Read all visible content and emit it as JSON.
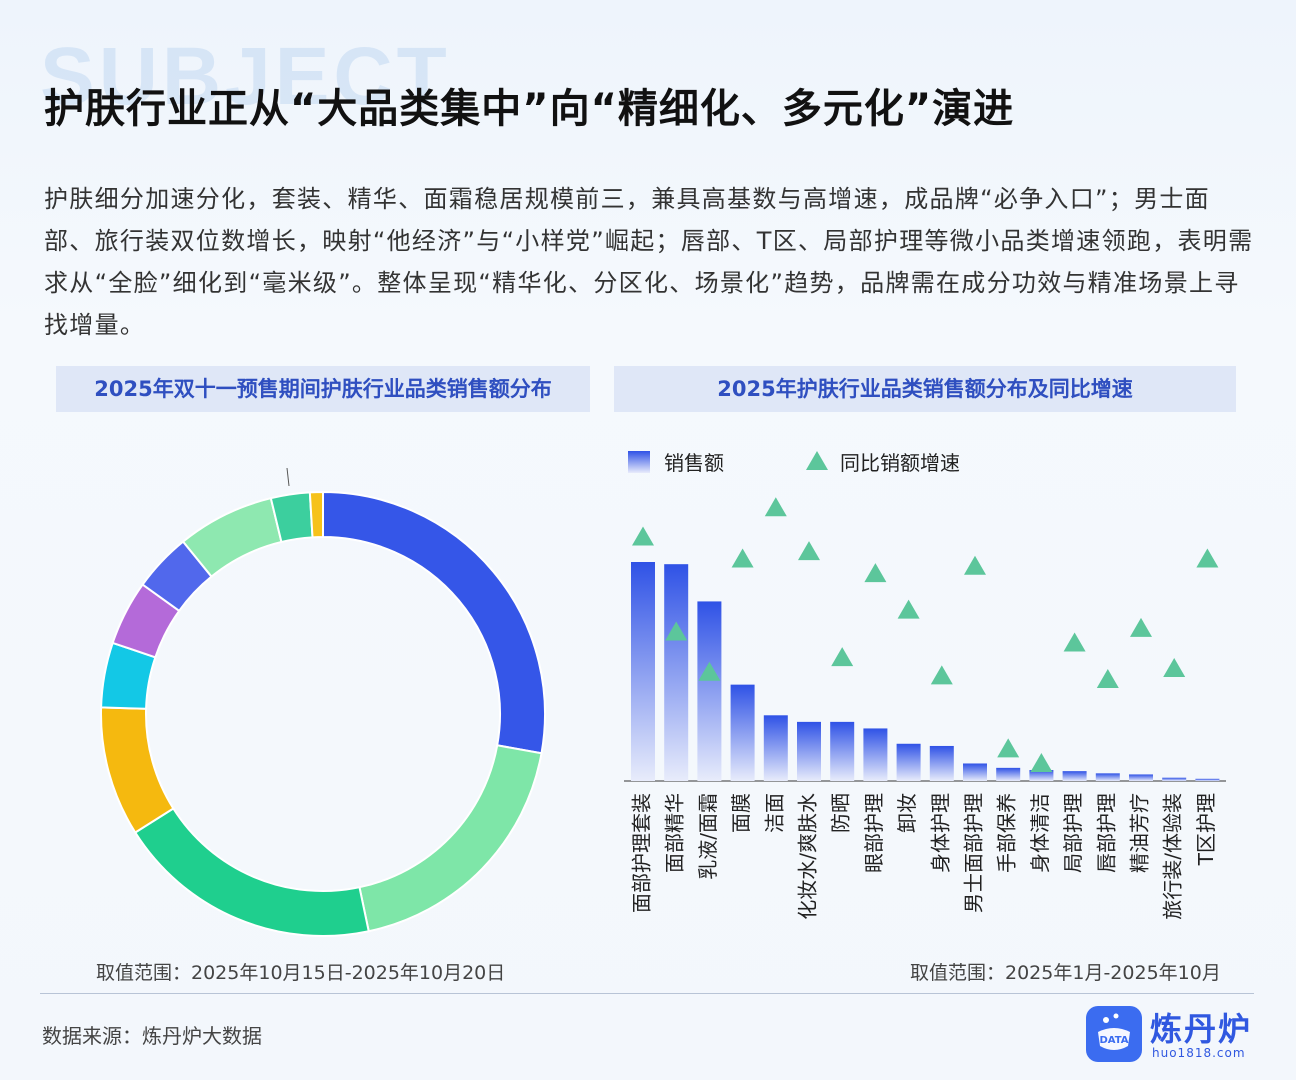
{
  "watermark": "SUBJECT",
  "title": "护肤行业正从“大品类集中”向“精细化、多元化”演进",
  "description": "护肤细分加速分化，套装、精华、面霜稳居规模前三，兼具高基数与高增速，成品牌“必争入口”；男士面部、旅行装双位数增长，映射“他经济”与“小样党”崛起；唇部、T区、局部护理等微小品类增速领跑，表明需求从“全脸”细化到“毫米级”。整体呈现“精华化、分区化、场景化”趋势，品牌需在成分功效与精准场景上寻找增量。",
  "left_panel": {
    "header": "2025年双十一预售期间护肤行业品类销售额分布",
    "range": "取值范围：2025年10月15日-2025年10月20日"
  },
  "right_panel": {
    "header": "2025年护肤行业品类销售额分布及同比增速",
    "range": "取值范围：2025年1月-2025年10月"
  },
  "source": "数据来源：炼丹炉大数据",
  "logo": {
    "name": "炼丹炉",
    "url": "huo1818.com",
    "icon_text": "DATA"
  },
  "chart_data": [
    {
      "type": "pie",
      "donut": true,
      "slices": [
        {
          "value": 29.5,
          "color": "#3556e8"
        },
        {
          "value": 20.0,
          "color": "#7ee6a8"
        },
        {
          "value": 20.5,
          "color": "#1fcf8e"
        },
        {
          "value": 10.0,
          "color": "#f5b90f"
        },
        {
          "value": 5.0,
          "color": "#13c8e6"
        },
        {
          "value": 5.0,
          "color": "#b46ad9"
        },
        {
          "value": 4.5,
          "color": "#5168ec"
        },
        {
          "value": 7.5,
          "color": "#8ee8b0"
        },
        {
          "value": 3.0,
          "color": "#3ccf9e"
        },
        {
          "value": 1.0,
          "color": "#f6c21a"
        }
      ]
    },
    {
      "type": "bar",
      "legend": [
        "销售额",
        "同比销额增速"
      ],
      "categories": [
        "面部护理套装",
        "面部精华",
        "乳液/面霜",
        "面膜",
        "洁面",
        "化妆水/爽肤水",
        "防晒",
        "眼部护理",
        "卸妆",
        "身体护理",
        "男士面部护理",
        "手部保养",
        "身体清洁",
        "局部护理",
        "唇部护理",
        "精油芳疗",
        "旅行装/体验装",
        "T区护理"
      ],
      "values": [
        100,
        99,
        82,
        44,
        30,
        27,
        27,
        24,
        17,
        16,
        8,
        6,
        5,
        4.5,
        3.5,
        3,
        1.5,
        1
      ],
      "growth": [
        65,
        39,
        28,
        59,
        73,
        61,
        32,
        55,
        45,
        27,
        57,
        7,
        3,
        36,
        26,
        40,
        29,
        59
      ],
      "colors": {
        "bar_top": "#2f52e6",
        "bar_bottom": "#ffffff",
        "marker": "#5cc69b"
      }
    }
  ]
}
